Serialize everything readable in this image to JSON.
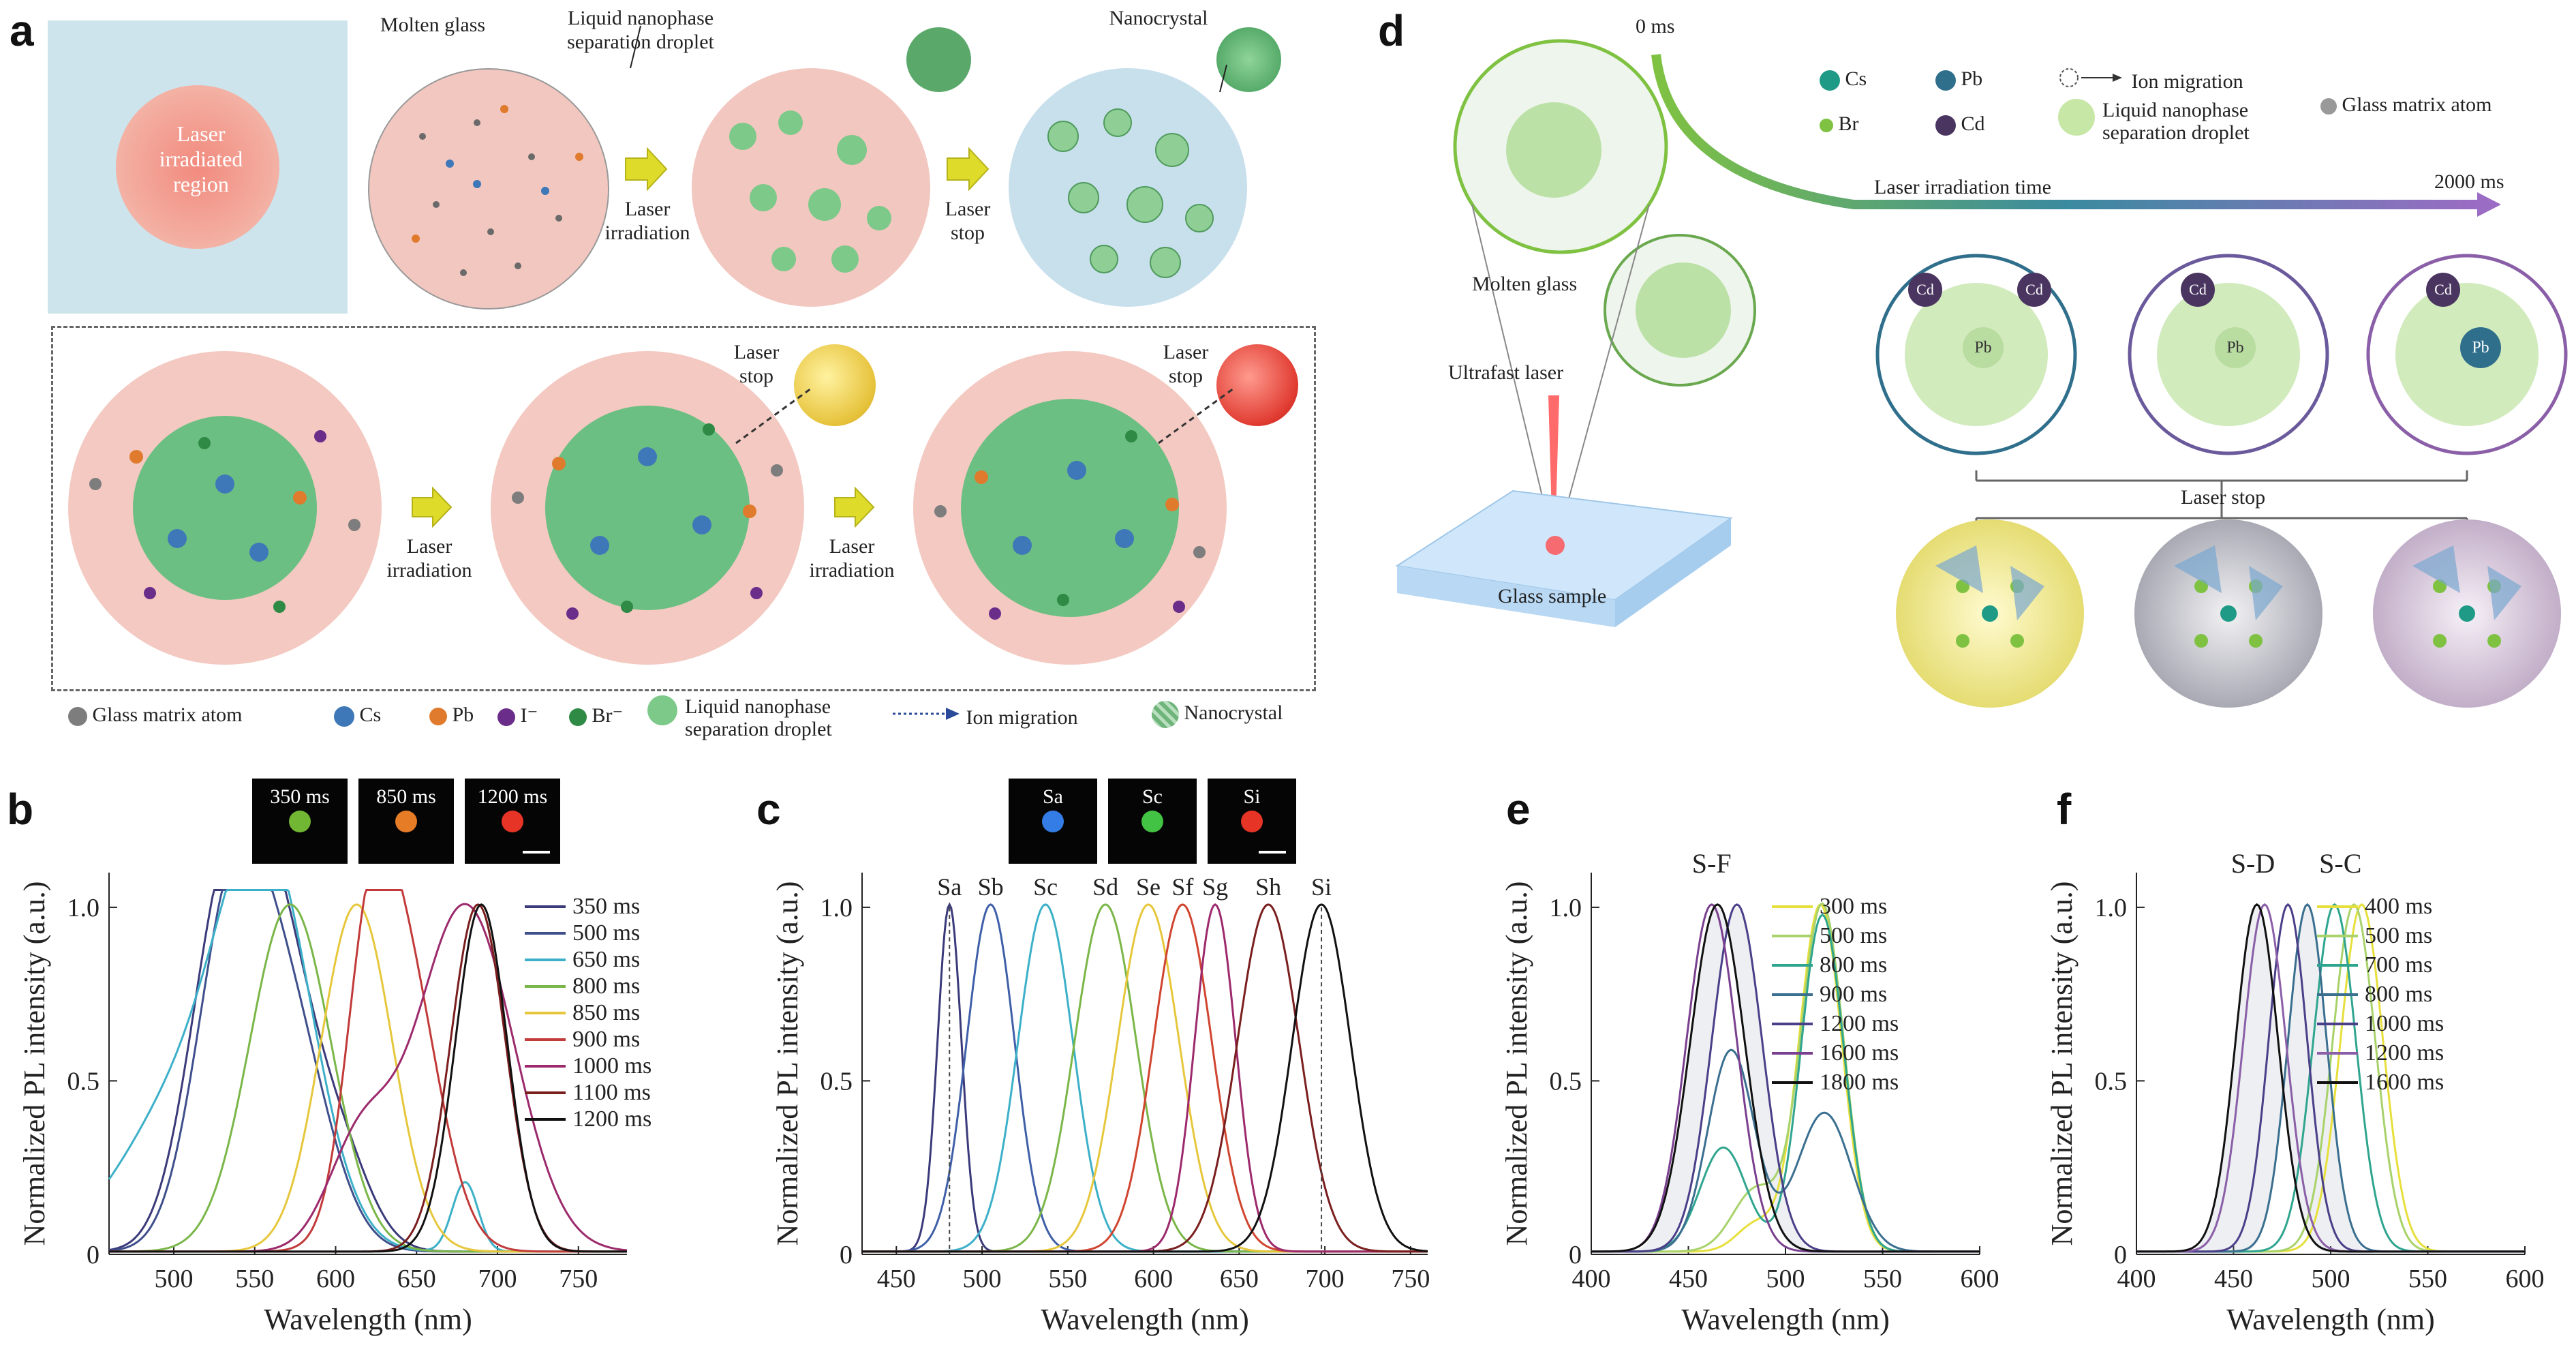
{
  "panel_a": {
    "letter": "a",
    "molten_glass": "Molten glass",
    "liquid_droplet": "Liquid nanophase separation droplet",
    "nanocrystal": "Nanocrystal",
    "laser_region": "Laser irradiated region",
    "laser_irradiation": "Laser irradiation",
    "laser_stop": "Laser stop",
    "legend": [
      {
        "label": "Glass matrix atom",
        "color": "#7d7d7d"
      },
      {
        "label": "Cs",
        "color": "#3f78b8"
      },
      {
        "label": "Pb",
        "color": "#e07a2c"
      },
      {
        "label": "I⁻",
        "color": "#6a2d8a"
      },
      {
        "label": "Br⁻",
        "color": "#2e8a45"
      },
      {
        "label": "Liquid nanophase separation droplet",
        "color": "#7cc98a"
      },
      {
        "label": "Ion migration",
        "color": "#2a4a9a"
      },
      {
        "label": "Nanocrystal",
        "color": "#6fb47a"
      }
    ]
  },
  "panel_d": {
    "letter": "d",
    "time_start": "0 ms",
    "time_end": "2000 ms",
    "time_axis": "Laser irradiation time",
    "molten_glass": "Molten glass",
    "ultrafast_laser": "Ultrafast laser",
    "glass_sample": "Glass sample",
    "laser_stop": "Laser stop",
    "legend": [
      {
        "label": "Cs",
        "color": "#1f9a86"
      },
      {
        "label": "Pb",
        "color": "#2f6f8c"
      },
      {
        "label": "Ion migration",
        "color": "#555555"
      },
      {
        "label": "Glass matrix atom",
        "color": "#999999"
      },
      {
        "label": "Br",
        "color": "#7fc242"
      },
      {
        "label": "Cd",
        "color": "#4a3560"
      },
      {
        "label": "Liquid nanophase separation droplet",
        "color": "#c7e7a7"
      }
    ],
    "cd": "Cd",
    "pb": "Pb",
    "cs": "Cs"
  },
  "chart_data": [
    {
      "panel": "b",
      "type": "line",
      "xlabel": "Wavelength (nm)",
      "ylabel": "Normalized PL intensity (a.u.)",
      "xlim": [
        460,
        780
      ],
      "ylim": [
        0,
        1.1
      ],
      "xticks": [
        500,
        550,
        600,
        650,
        700,
        750
      ],
      "yticks": [
        0,
        0.5,
        1.0
      ],
      "ytick_labels": [
        "0",
        "0.5",
        "1.0"
      ],
      "insets": [
        "350 ms",
        "850 ms",
        "1200 ms"
      ],
      "series": [
        {
          "name": "350 ms",
          "color": "#3b3a7a",
          "peaks": [
            [
              532,
              1.0,
              22
            ],
            [
              565,
              0.72,
              20
            ],
            [
              600,
              0.3,
              20
            ]
          ]
        },
        {
          "name": "500 ms",
          "color": "#3f4f8c",
          "peaks": [
            [
              536,
              0.95,
              22
            ],
            [
              572,
              0.6,
              24
            ]
          ]
        },
        {
          "name": "650 ms",
          "color": "#3cb0c8",
          "peaks": [
            [
              558,
              1.0,
              28
            ],
            [
              510,
              0.45,
              40
            ],
            [
              680,
              0.2,
              8
            ]
          ]
        },
        {
          "name": "800 ms",
          "color": "#7ab648",
          "peaks": [
            [
              572,
              1.0,
              25
            ]
          ]
        },
        {
          "name": "850 ms",
          "color": "#e6c73c",
          "peaks": [
            [
              613,
              1.0,
              22
            ]
          ]
        },
        {
          "name": "900 ms",
          "color": "#c23a3a",
          "peaks": [
            [
              640,
              0.88,
              22
            ],
            [
              620,
              0.5,
              14
            ]
          ]
        },
        {
          "name": "1000 ms",
          "color": "#9c2a6c",
          "peaks": [
            [
              680,
              1.0,
              30
            ],
            [
              615,
              0.3,
              20
            ]
          ]
        },
        {
          "name": "1100 ms",
          "color": "#7a1e1e",
          "peaks": [
            [
              688,
              1.0,
              17
            ]
          ]
        },
        {
          "name": "1200 ms",
          "color": "#111111",
          "peaks": [
            [
              690,
              1.0,
              16
            ]
          ]
        }
      ]
    },
    {
      "panel": "c",
      "type": "line",
      "xlabel": "Wavelength (nm)",
      "ylabel": "Normalized PL intensity (a.u.)",
      "xlim": [
        430,
        760
      ],
      "ylim": [
        0,
        1.1
      ],
      "xticks": [
        450,
        500,
        550,
        600,
        650,
        700,
        750
      ],
      "yticks": [
        0,
        0.5,
        1.0
      ],
      "ytick_labels": [
        "0",
        "0.5",
        "1.0"
      ],
      "insets": [
        "Sa",
        "Sc",
        "Si"
      ],
      "series": [
        {
          "name": "Sa",
          "color": "#3b3a7a",
          "peaks": [
            [
              481,
              1.0,
              7
            ]
          ]
        },
        {
          "name": "Sb",
          "color": "#3f5fa8",
          "peaks": [
            [
              505,
              1.0,
              14
            ]
          ]
        },
        {
          "name": "Sc",
          "color": "#3cb0c8",
          "peaks": [
            [
              537,
              1.0,
              16
            ]
          ]
        },
        {
          "name": "Sd",
          "color": "#7ab648",
          "peaks": [
            [
              572,
              1.0,
              18
            ]
          ]
        },
        {
          "name": "Se",
          "color": "#e6c73c",
          "peaks": [
            [
              597,
              1.0,
              18
            ]
          ]
        },
        {
          "name": "Sf",
          "color": "#d0452f",
          "peaks": [
            [
              617,
              1.0,
              17
            ]
          ]
        },
        {
          "name": "Sg",
          "color": "#9c2a6c",
          "peaks": [
            [
              636,
              1.0,
              12
            ]
          ]
        },
        {
          "name": "Sh",
          "color": "#7a1e1e",
          "peaks": [
            [
              667,
              1.0,
              18
            ]
          ]
        },
        {
          "name": "Si",
          "color": "#111111",
          "peaks": [
            [
              698,
              1.0,
              17
            ]
          ]
        }
      ]
    },
    {
      "panel": "e",
      "type": "line",
      "xlabel": "Wavelength (nm)",
      "ylabel": "Normalized PL intensity (a.u.)",
      "xlim": [
        400,
        600
      ],
      "ylim": [
        0,
        1.1
      ],
      "xticks": [
        400,
        450,
        500,
        550,
        600
      ],
      "yticks": [
        0,
        0.5,
        1.0
      ],
      "ytick_labels": [
        "0",
        "0.5",
        "1.0"
      ],
      "annotation": "S-F",
      "series": [
        {
          "name": "300 ms",
          "color": "#e6df3c",
          "peaks": [
            [
              518,
              1.0,
              11
            ],
            [
              485,
              0.08,
              10
            ]
          ]
        },
        {
          "name": "500 ms",
          "color": "#a8d26a",
          "peaks": [
            [
              519,
              1.0,
              11
            ],
            [
              485,
              0.18,
              12
            ]
          ]
        },
        {
          "name": "800 ms",
          "color": "#2fa58f",
          "peaks": [
            [
              519,
              0.97,
              11
            ],
            [
              468,
              0.3,
              12
            ]
          ]
        },
        {
          "name": "900 ms",
          "color": "#3a6f8f",
          "peaks": [
            [
              472,
              0.58,
              12
            ],
            [
              520,
              0.4,
              14
            ]
          ]
        },
        {
          "name": "1200 ms",
          "color": "#4a3f88",
          "peaks": [
            [
              475,
              1.0,
              13
            ]
          ]
        },
        {
          "name": "1600 ms",
          "color": "#7a3f8f",
          "peaks": [
            [
              462,
              1.0,
              13
            ]
          ]
        },
        {
          "name": "1800 ms",
          "color": "#111111",
          "peaks": [
            [
              465,
              1.0,
              14
            ]
          ]
        }
      ]
    },
    {
      "panel": "f",
      "type": "line",
      "xlabel": "Wavelength (nm)",
      "ylabel": "Normalized PL intensity (a.u.)",
      "xlim": [
        400,
        600
      ],
      "ylim": [
        0,
        1.1
      ],
      "xticks": [
        400,
        450,
        500,
        550,
        600
      ],
      "yticks": [
        0,
        0.5,
        1.0
      ],
      "ytick_labels": [
        "0",
        "0.5",
        "1.0"
      ],
      "annotation_left": "S-D",
      "annotation_right": "S-C",
      "series": [
        {
          "name": "400 ms",
          "color": "#e6df3c",
          "peaks": [
            [
              516,
              1.0,
              11
            ]
          ]
        },
        {
          "name": "500 ms",
          "color": "#a8d26a",
          "peaks": [
            [
              512,
              1.0,
              11
            ]
          ]
        },
        {
          "name": "700 ms",
          "color": "#2fa58f",
          "peaks": [
            [
              502,
              1.0,
              11
            ]
          ]
        },
        {
          "name": "800 ms",
          "color": "#3a6f8f",
          "peaks": [
            [
              488,
              1.0,
              10
            ]
          ]
        },
        {
          "name": "1000 ms",
          "color": "#4a3f88",
          "peaks": [
            [
              478,
              1.0,
              10
            ]
          ]
        },
        {
          "name": "1200 ms",
          "color": "#8a5fa8",
          "peaks": [
            [
              466,
              1.0,
              11
            ]
          ]
        },
        {
          "name": "1600 ms",
          "color": "#111111",
          "peaks": [
            [
              462,
              1.0,
              11
            ]
          ]
        }
      ]
    }
  ]
}
